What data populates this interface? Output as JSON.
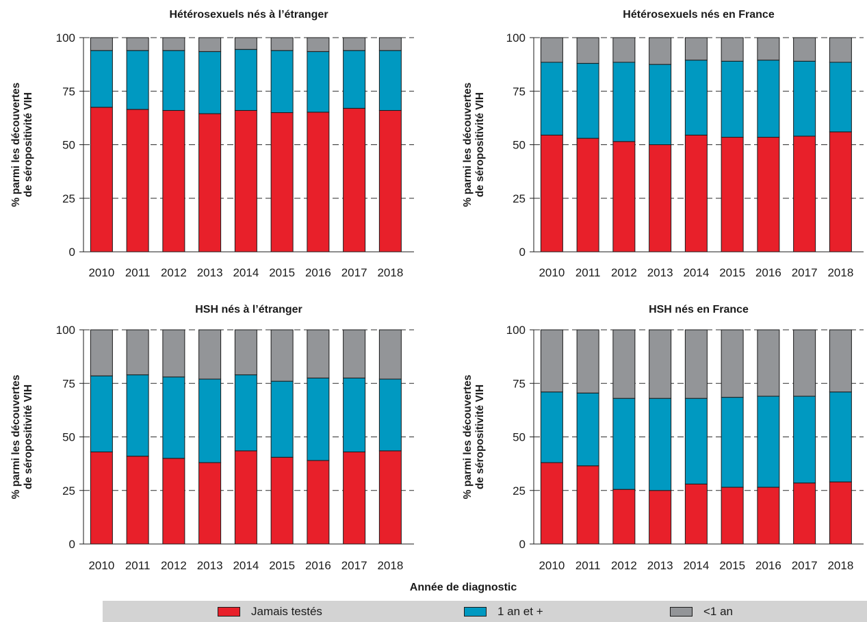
{
  "chart_data": {
    "type": "bar",
    "stacked": true,
    "categories": [
      "2010",
      "2011",
      "2012",
      "2013",
      "2014",
      "2015",
      "2016",
      "2017",
      "2018"
    ],
    "ylim": [
      0,
      100
    ],
    "yticks": [
      "0",
      "25",
      "50",
      "75",
      "100"
    ],
    "ylabel_line1": "% parmi les découvertes",
    "ylabel_line2": "de séropositivité VIH",
    "xlabel": "Année de diagnostic",
    "grid": "dashed horizontal",
    "legend_position": "bottom",
    "series_legend": [
      {
        "name": "Jamais testés",
        "color": "#e8202a"
      },
      {
        "name": "1 an et +",
        "color": "#0099c1"
      },
      {
        "name": "<1 an",
        "color": "#939598"
      }
    ],
    "panels": [
      {
        "title": "Hétérosexuels nés à l’étranger",
        "series": [
          {
            "name": "Jamais testés",
            "values": [
              67.5,
              66.5,
              66,
              64.5,
              66,
              65,
              65.2,
              67,
              66
            ]
          },
          {
            "name": "1 an et +",
            "values": [
              26.5,
              27.5,
              28,
              29,
              28.5,
              29,
              28.3,
              27,
              28
            ]
          },
          {
            "name": "<1 an",
            "values": [
              6,
              6,
              6,
              6.5,
              5.5,
              6,
              6.5,
              6,
              6
            ]
          }
        ]
      },
      {
        "title": "Hétérosexuels nés en France",
        "series": [
          {
            "name": "Jamais testés",
            "values": [
              54.5,
              53,
              51.5,
              50,
              54.5,
              53.5,
              53.5,
              54,
              56
            ]
          },
          {
            "name": "1 an et +",
            "values": [
              34,
              35,
              37,
              37.5,
              35,
              35.5,
              36,
              35,
              32.5
            ]
          },
          {
            "name": "<1 an",
            "values": [
              11.5,
              12,
              11.5,
              12.5,
              10.5,
              11,
              10.5,
              11,
              11.5
            ]
          }
        ]
      },
      {
        "title": "HSH nés à l’étranger",
        "series": [
          {
            "name": "Jamais testés",
            "values": [
              43,
              41,
              40,
              38,
              43.5,
              40.5,
              39,
              43,
              43.5
            ]
          },
          {
            "name": "1 an et +",
            "values": [
              35.5,
              38,
              38,
              39,
              35.5,
              35.5,
              38.5,
              34.5,
              33.5
            ]
          },
          {
            "name": "<1 an",
            "values": [
              21.5,
              21,
              22,
              23,
              21,
              24,
              22.5,
              22.5,
              23
            ]
          }
        ]
      },
      {
        "title": "HSH nés en France",
        "series": [
          {
            "name": "Jamais testés",
            "values": [
              38,
              36.5,
              25.5,
              25,
              28,
              26.5,
              26.5,
              28.5,
              29
            ]
          },
          {
            "name": "1 an et +",
            "values": [
              33,
              34,
              42.5,
              43,
              40,
              42,
              42.5,
              40.5,
              42
            ]
          },
          {
            "name": "<1 an",
            "values": [
              29,
              29.5,
              32,
              32,
              32,
              31.5,
              31,
              31,
              29
            ]
          }
        ]
      }
    ]
  }
}
